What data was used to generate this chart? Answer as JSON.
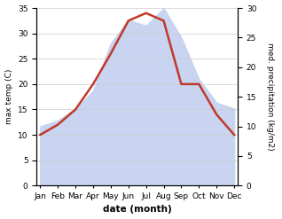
{
  "months": [
    "Jan",
    "Feb",
    "Mar",
    "Apr",
    "May",
    "Jun",
    "Jul",
    "Aug",
    "Sep",
    "Oct",
    "Nov",
    "Dec"
  ],
  "temp": [
    10,
    12,
    15,
    20,
    26,
    32.5,
    34,
    32.5,
    20,
    20,
    14,
    10
  ],
  "precip": [
    10,
    11,
    13,
    16,
    24,
    28,
    27,
    30,
    25,
    18,
    14,
    13
  ],
  "temp_color": "#c0392b",
  "precip_fill_color": "#c8d4f0",
  "precip_fill_edge": "#aabbee",
  "temp_ylim": [
    0,
    35
  ],
  "precip_ylim": [
    0,
    30
  ],
  "temp_ylabel": "max temp (C)",
  "precip_ylabel": "med. precipitation (kg/m2)",
  "xlabel": "date (month)",
  "temp_yticks": [
    0,
    5,
    10,
    15,
    20,
    25,
    30,
    35
  ],
  "precip_yticks": [
    0,
    5,
    10,
    15,
    20,
    25,
    30
  ],
  "bg_color": "#f5f5f5"
}
